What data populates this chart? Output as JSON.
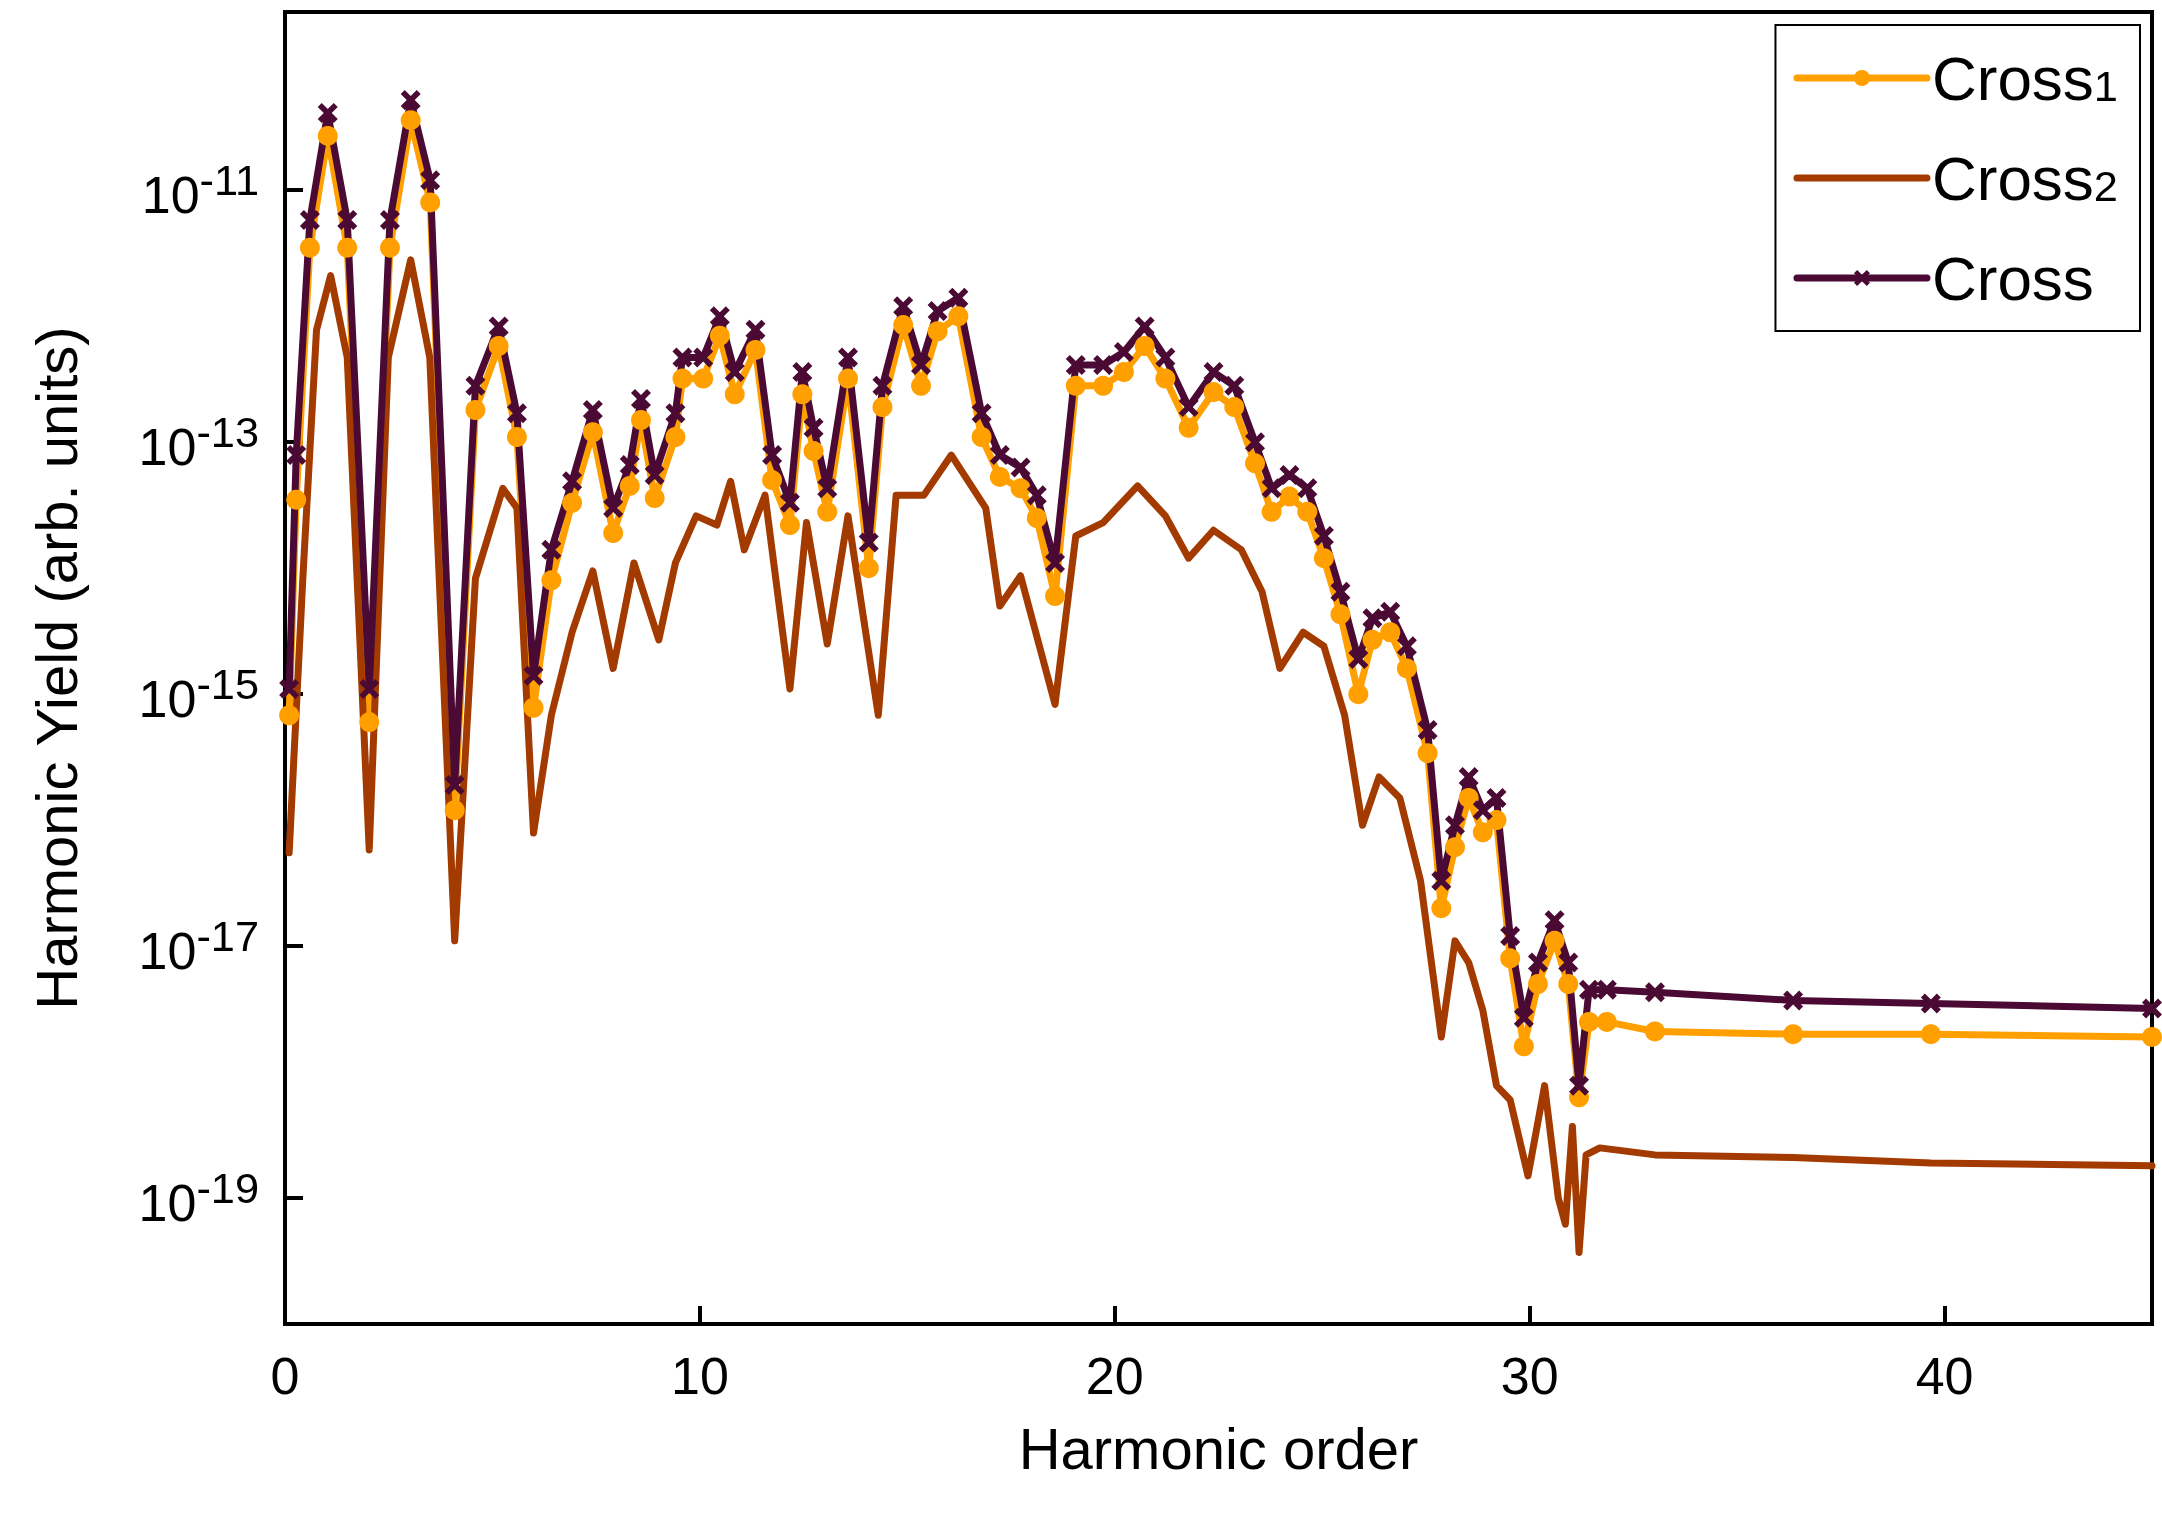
{
  "chart_data": {
    "type": "line",
    "xlabel": "Harmonic order",
    "ylabel": "Harmonic Yield (arb. units)",
    "x": [
      0.1,
      0.27,
      0.6,
      1.03,
      1.5,
      2.03,
      2.53,
      3.03,
      3.5,
      4.09,
      4.59,
      5.15,
      5.59,
      5.99,
      6.42,
      6.92,
      7.42,
      7.91,
      8.31,
      8.58,
      8.91,
      9.41,
      9.58,
      10.08,
      10.48,
      10.84,
      11.34,
      11.74,
      12.17,
      12.47,
      12.74,
      13.07,
      13.57,
      14.07,
      14.4,
      14.9,
      15.33,
      15.73,
      16.23,
      16.79,
      17.23,
      17.73,
      18.12,
      18.56,
      19.06,
      19.72,
      20.22,
      20.72,
      21.22,
      21.78,
      22.38,
      22.88,
      23.38,
      23.78,
      24.21,
      24.64,
      25.04,
      25.44,
      25.87,
      26.21,
      26.64,
      27.04,
      27.54,
      27.87,
      28.2,
      28.53,
      28.87,
      29.2,
      29.53,
      29.86,
      30.2,
      30.6,
      30.93,
      31.19,
      31.43,
      31.86,
      33.02,
      36.35,
      39.67,
      45
    ],
    "series": [
      {
        "name": "Cross$_{1}$",
        "color": "#ffa000",
        "marker": "circle",
        "values": [
          6.8e-16,
          3.5e-14,
          3.5e-12,
          2.7e-11,
          3.5e-12,
          6e-16,
          3.5e-12,
          3.6e-11,
          8e-12,
          1.2e-16,
          1.8e-13,
          5.8e-13,
          1.1e-13,
          7.8e-16,
          8e-15,
          3.3e-14,
          1.2e-13,
          1.9e-14,
          4.5e-14,
          1.5e-13,
          3.6e-14,
          1.1e-13,
          3.2e-13,
          3.2e-13,
          7e-13,
          2.4e-13,
          5.4e-13,
          5e-14,
          2.2e-14,
          2.4e-13,
          8.5e-14,
          2.8e-14,
          3.2e-13,
          1e-14,
          1.9e-13,
          8.5e-13,
          2.8e-13,
          7.6e-13,
          1e-12,
          1.1e-13,
          5.3e-14,
          4.3e-14,
          2.5e-14,
          6e-15,
          2.8e-13,
          2.8e-13,
          3.6e-13,
          5.8e-13,
          3.2e-13,
          1.3e-13,
          2.5e-13,
          1.9e-13,
          6.8e-14,
          2.8e-14,
          3.7e-14,
          2.8e-14,
          1.2e-14,
          4.3e-15,
          1e-15,
          2.7e-15,
          3.1e-15,
          1.6e-15,
          3.4e-16,
          2e-17,
          6.1e-17,
          1.5e-16,
          8e-17,
          1e-16,
          8e-18,
          1.6e-18,
          5e-18,
          1.1e-17,
          5e-18,
          6.3e-19,
          2.5e-18,
          2.5e-18,
          2.1e-18,
          2e-18,
          2e-18,
          1.9e-18
        ]
      },
      {
        "name": "Cross$_{2}$",
        "color": "#a33a00",
        "marker": "none",
        "x": [
          0.1,
          0.43,
          0.76,
          1.1,
          1.5,
          2.03,
          2.49,
          3.03,
          3.49,
          4.09,
          4.59,
          5.25,
          5.59,
          5.99,
          6.42,
          6.92,
          7.42,
          7.91,
          8.41,
          9.01,
          9.41,
          9.91,
          10.41,
          10.74,
          11.07,
          11.57,
          12.17,
          12.57,
          13.07,
          13.57,
          14.3,
          14.73,
          15.4,
          16.06,
          16.89,
          17.23,
          17.73,
          18.56,
          19.06,
          19.72,
          20.55,
          21.22,
          21.78,
          22.38,
          23.05,
          23.55,
          23.98,
          24.54,
          25.04,
          25.54,
          25.97,
          26.37,
          26.87,
          27.37,
          27.87,
          28.2,
          28.53,
          28.87,
          29.2,
          29.53,
          29.96,
          30.36,
          30.69,
          30.86,
          31.03,
          31.19,
          31.36,
          31.69,
          33.02,
          36.35,
          39.67,
          45
        ],
        "values": [
          5.5e-17,
          8.3e-15,
          7.8e-13,
          2.1e-12,
          4.7e-13,
          5.8e-17,
          4.7e-13,
          2.8e-12,
          4.7e-13,
          1.1e-17,
          8.3e-15,
          4.3e-14,
          3e-14,
          7.9e-17,
          6.8e-16,
          3.1e-15,
          9.5e-15,
          1.6e-15,
          1.1e-14,
          2.7e-15,
          1.1e-14,
          2.6e-14,
          2.2e-14,
          4.9e-14,
          1.4e-14,
          3.8e-14,
          1.1e-15,
          2.3e-14,
          2.5e-15,
          2.6e-14,
          6.8e-16,
          3.8e-14,
          3.8e-14,
          7.9e-14,
          3e-14,
          5e-15,
          8.7e-15,
          8.3e-16,
          1.8e-14,
          2.3e-14,
          4.5e-14,
          2.6e-14,
          1.2e-14,
          2e-14,
          1.4e-14,
          6.5e-15,
          1.6e-15,
          3.1e-15,
          2.4e-15,
          6.8e-16,
          9.1e-17,
          2.2e-16,
          1.5e-16,
          3.3e-17,
          1.9e-18,
          1.1e-17,
          7.4e-18,
          3.1e-18,
          7.8e-19,
          6e-19,
          1.5e-19,
          7.8e-19,
          1e-19,
          6.2e-20,
          3.7e-19,
          3.7e-20,
          2.2e-19,
          2.5e-19,
          2.2e-19,
          2.1e-19,
          1.9e-19,
          1.8e-19
        ]
      },
      {
        "name": "Cross",
        "color": "#4a0a33",
        "marker": "cross",
        "values": [
          1.1e-15,
          7.9e-14,
          5.8e-12,
          4.1e-11,
          5.8e-12,
          1.1e-15,
          5.8e-12,
          5.2e-11,
          1.2e-11,
          1.9e-16,
          2.8e-13,
          8.3e-13,
          1.7e-13,
          1.4e-15,
          1.4e-14,
          4.9e-14,
          1.8e-13,
          3e-14,
          6.6e-14,
          2.2e-13,
          5.5e-14,
          1.7e-13,
          4.7e-13,
          4.7e-13,
          1e-12,
          3.6e-13,
          7.8e-13,
          7.9e-14,
          3.3e-14,
          3.6e-13,
          1.3e-13,
          4.3e-14,
          4.7e-13,
          1.6e-14,
          2.8e-13,
          1.2e-12,
          4.1e-13,
          1.1e-12,
          1.4e-12,
          1.7e-13,
          7.9e-14,
          6.3e-14,
          3.8e-14,
          1.1e-14,
          4.1e-13,
          4.1e-13,
          5.2e-13,
          8.3e-13,
          4.7e-13,
          1.9e-13,
          3.6e-13,
          2.8e-13,
          1e-13,
          4.3e-14,
          5.5e-14,
          4.3e-14,
          1.8e-14,
          6.5e-15,
          1.9e-15,
          4e-15,
          4.5e-15,
          2.4e-15,
          5.2e-16,
          3.3e-17,
          9.1e-17,
          2.2e-16,
          1.2e-16,
          1.5e-16,
          1.2e-17,
          2.7e-18,
          7.4e-18,
          1.6e-17,
          7.4e-18,
          7.8e-19,
          4.5e-18,
          4.5e-18,
          4.3e-18,
          3.7e-18,
          3.5e-18,
          3.2e-18
        ]
      }
    ],
    "log": "y",
    "xlim": [
      0,
      45
    ],
    "xticks": [
      0,
      10,
      20,
      30,
      40
    ],
    "ylim": [
      1e-20,
      2.6e-10
    ],
    "yticks": [
      {
        "value": 1e-19,
        "label": "10$^{-19}$"
      },
      {
        "value": 1e-17,
        "label": "10$^{-17}$"
      },
      {
        "value": 1e-15,
        "label": "10$^{-15}$"
      },
      {
        "value": 1e-13,
        "label": "10$^{-13}$"
      },
      {
        "value": 1e-11,
        "label": "10$^{-11}$"
      }
    ],
    "grid": false,
    "legend": "top right",
    "line_style": "solid"
  }
}
